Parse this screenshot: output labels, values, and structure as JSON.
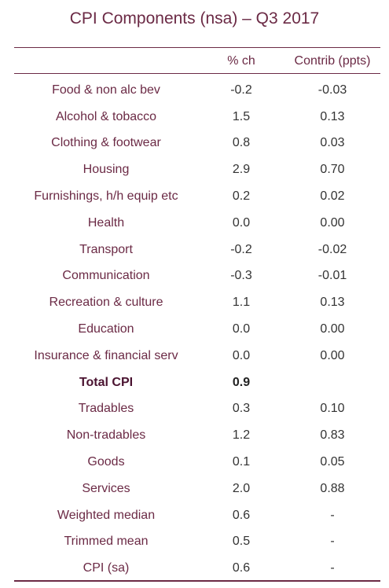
{
  "chart_data": {
    "type": "table",
    "title": "CPI Components (nsa) – Q3 2017",
    "columns": [
      "",
      "% ch",
      "Contrib (ppts)"
    ],
    "rows": [
      {
        "label": "Food & non alc bev",
        "pct": "-0.2",
        "contrib": "-0.03",
        "bold": false
      },
      {
        "label": "Alcohol & tobacco",
        "pct": "1.5",
        "contrib": "0.13",
        "bold": false
      },
      {
        "label": "Clothing & footwear",
        "pct": "0.8",
        "contrib": "0.03",
        "bold": false
      },
      {
        "label": "Housing",
        "pct": "2.9",
        "contrib": "0.70",
        "bold": false
      },
      {
        "label": "Furnishings, h/h equip etc",
        "pct": "0.2",
        "contrib": "0.02",
        "bold": false
      },
      {
        "label": "Health",
        "pct": "0.0",
        "contrib": "0.00",
        "bold": false
      },
      {
        "label": "Transport",
        "pct": "-0.2",
        "contrib": "-0.02",
        "bold": false
      },
      {
        "label": "Communication",
        "pct": "-0.3",
        "contrib": "-0.01",
        "bold": false
      },
      {
        "label": "Recreation & culture",
        "pct": "1.1",
        "contrib": "0.13",
        "bold": false
      },
      {
        "label": "Education",
        "pct": "0.0",
        "contrib": "0.00",
        "bold": false
      },
      {
        "label": "Insurance & financial serv",
        "pct": "0.0",
        "contrib": "0.00",
        "bold": false
      },
      {
        "label": "Total CPI",
        "pct": "0.9",
        "contrib": "",
        "bold": true
      },
      {
        "label": "Tradables",
        "pct": "0.3",
        "contrib": "0.10",
        "bold": false
      },
      {
        "label": "Non-tradables",
        "pct": "1.2",
        "contrib": "0.83",
        "bold": false
      },
      {
        "label": "Goods",
        "pct": "0.1",
        "contrib": "0.05",
        "bold": false
      },
      {
        "label": "Services",
        "pct": "2.0",
        "contrib": "0.88",
        "bold": false
      },
      {
        "label": "Weighted median",
        "pct": "0.6",
        "contrib": "-",
        "bold": false
      },
      {
        "label": "Trimmed mean",
        "pct": "0.5",
        "contrib": "-",
        "bold": false
      },
      {
        "label": "CPI (sa)",
        "pct": "0.6",
        "contrib": "-",
        "bold": false
      }
    ]
  },
  "colors": {
    "accent": "#6b2a45",
    "value_text": "#333333"
  }
}
